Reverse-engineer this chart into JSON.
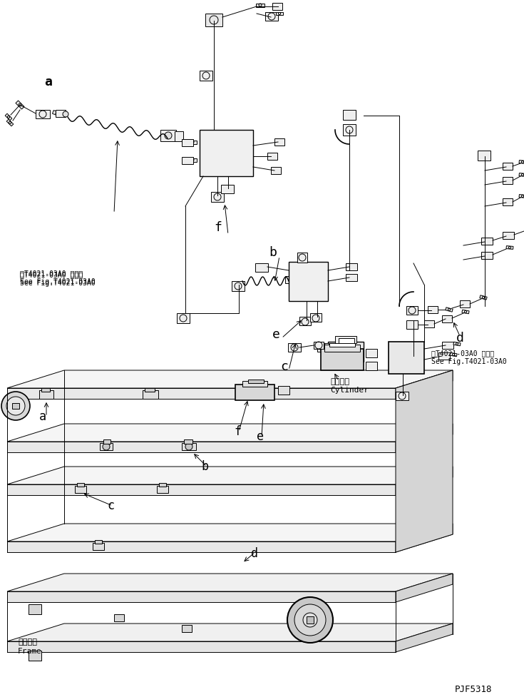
{
  "bg_color": "#ffffff",
  "line_color": "#000000",
  "fig_width": 7.35,
  "fig_height": 9.78,
  "dpi": 100,
  "ref_text_1_line1": "第T4021-03A0 図参照",
  "ref_text_1_line2": "See Fig.T4021-03A0",
  "ref_text_2_line1": "第T4021-03A0 図参照",
  "ref_text_2_line2": "See Fig.T4021-03A0",
  "cylinder_text_line1": "シリンダ",
  "cylinder_text_line2": "Cylinder",
  "frame_text_line1": "フレーム",
  "frame_text_line2": "Frame",
  "part_number": "PJF5318",
  "font_size_label": 13,
  "font_size_ref": 7,
  "font_size_part": 9
}
